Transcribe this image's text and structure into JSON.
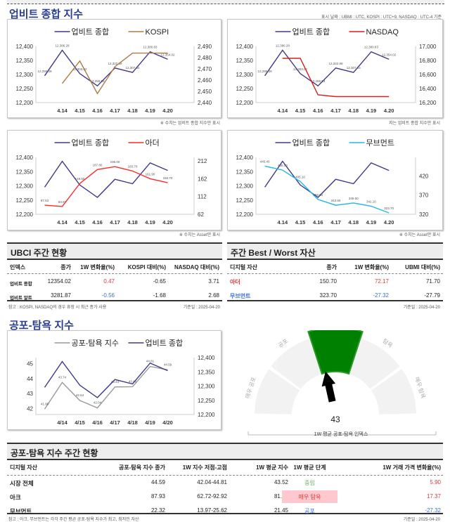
{
  "colors": {
    "ubmi": "#3f3a8c",
    "kospi": "#b07a45",
    "nasdaq": "#d42020",
    "ader": "#ff2a2a",
    "movement": "#22b5ee",
    "fear": "#999999",
    "gauge_active": "#008000",
    "gauge_idle": "#f2f2f2"
  },
  "header": {
    "title": "업비트 종합 지수",
    "date_note": "표시 날짜 : UBMI : UTC, KOSPI : UTC+9, NASDAQ : UTC-4 기준"
  },
  "chart_data": [
    {
      "type": "line",
      "categories": [
        "",
        "4.14",
        "4.15",
        "4.16",
        "4.17",
        "4.18",
        "4.19",
        "4.20"
      ],
      "series": [
        {
          "name": "업비트 종합",
          "axis": "left",
          "values": [
            12295.39,
            12386.28,
            12303.02,
            12259.53,
            12322.89,
            12307.34,
            12380.83,
            12354.02
          ],
          "labels": [
            "12,295.39",
            "12,386.28",
            "12,303.02",
            "12,259.53",
            "12,322.89",
            "12,307.34",
            "12,380.83",
            "12,354.02"
          ]
        },
        {
          "name": "KOSPI",
          "axis": "right",
          "values": [
            null,
            2457,
            2477,
            2448,
            2472,
            2484,
            2484,
            2484
          ]
        }
      ],
      "left_ticks": [
        "12,400",
        "12,350",
        "12,300",
        "12,250",
        "12,200"
      ],
      "ylim": [
        12200,
        12400
      ],
      "right_ticks": [
        "2,490",
        "2,480",
        "2,470",
        "2,460",
        "2,450",
        "2,440"
      ],
      "ylim_right": [
        2440,
        2490
      ],
      "note": "※ 수치는 업비트 종합 지수만 표시"
    },
    {
      "type": "line",
      "categories": [
        "",
        "4.14",
        "4.15",
        "4.16",
        "4.17",
        "4.18",
        "4.19",
        "4.20"
      ],
      "series": [
        {
          "name": "업비트 종합",
          "axis": "left",
          "values": [
            12295.39,
            12386.28,
            12303.02,
            12259.53,
            12322.89,
            12307.34,
            12380.83,
            12354.02
          ],
          "labels": [
            "12,295.39",
            "12,386.28",
            "12,303.02",
            "12,259.53",
            "12,322.89",
            "12,307.34",
            "12,380.83",
            "12,354.02"
          ]
        },
        {
          "name": "NASDAQ",
          "axis": "right",
          "values": [
            null,
            16830,
            16830,
            16310,
            16285,
            16285,
            16285,
            16285
          ]
        }
      ],
      "left_ticks": [
        "12,400",
        "12,350",
        "12,300",
        "12,250",
        "12,200"
      ],
      "ylim": [
        12200,
        12400
      ],
      "right_ticks": [
        "17,000",
        "16,800",
        "16,600",
        "16,400",
        "16,200"
      ],
      "ylim_right": [
        16200,
        17000
      ],
      "note": "지는 업비트 종합 지수만 표시"
    },
    {
      "type": "line",
      "categories": [
        "",
        "4.14",
        "4.15",
        "4.16",
        "4.17",
        "4.18",
        "4.19",
        "4.20"
      ],
      "series": [
        {
          "name": "업비트 종합",
          "axis": "left",
          "values": [
            12295.39,
            12386.28,
            12303.02,
            12259.53,
            12322.89,
            12307.34,
            12380.83,
            12354.02
          ]
        },
        {
          "name": "아더",
          "axis": "right",
          "values": [
            87.53,
            83.97,
            148.5,
            187.8,
            196.0,
            183.7,
            161.9,
            150.7
          ],
          "labels": [
            "87.53",
            "83.97",
            "148.50",
            "187.80",
            "196.00",
            "183.70",
            "161.90",
            "150.70"
          ]
        }
      ],
      "left_ticks": [
        "12,400",
        "12,350",
        "12,300",
        "12,250",
        "12,200"
      ],
      "ylim": [
        12200,
        12400
      ],
      "right_ticks": [
        "212",
        "162",
        "112",
        "62"
      ],
      "ylim_right": [
        62,
        222
      ],
      "note": "※ 수치는 Asset만 표시"
    },
    {
      "type": "line",
      "categories": [
        "",
        "4.14",
        "4.15",
        "4.16",
        "4.17",
        "4.18",
        "4.19",
        "4.20"
      ],
      "series": [
        {
          "name": "업비트 종합",
          "axis": "left",
          "values": [
            12295.39,
            12386.28,
            12303.02,
            12259.53,
            12322.89,
            12307.34,
            12380.83,
            12354.02
          ]
        },
        {
          "name": "무브먼트",
          "axis": "right",
          "values": [
            445.4,
            435.0,
            405.1,
            358.6,
            343.5,
            349.5,
            341.1,
            323.7
          ],
          "labels": [
            "445.40",
            "435.00",
            "405.10",
            "358.60",
            "343.50",
            "349.50",
            "341.10",
            "323.70"
          ]
        }
      ],
      "left_ticks": [
        "12,400",
        "12,350",
        "12,300",
        "12,250",
        "12,200"
      ],
      "ylim": [
        12200,
        12400
      ],
      "right_ticks": [
        "420",
        "370",
        "320"
      ],
      "ylim_right": [
        320,
        468
      ],
      "note": "※ 수치는 Asset만 표시"
    },
    {
      "type": "line",
      "categories": [
        "",
        "4/14",
        "4/15",
        "4/16",
        "4/17",
        "4/18",
        "4/19",
        "4/20"
      ],
      "series": [
        {
          "name": "공포-탐욕 지수",
          "axis": "left",
          "values": [
            41.96,
            43.74,
            42.54,
            42.04,
            43.44,
            43.46,
            44.81,
            44.59
          ],
          "labels": [
            "41.96",
            "43.74",
            "42.54",
            "42.04",
            "43.44",
            "43.46",
            "44.81",
            "44.59"
          ]
        },
        {
          "name": "업비트 종합",
          "axis": "right",
          "values": [
            12295.39,
            12386.28,
            12303.02,
            12259.53,
            12322.89,
            12307.34,
            12380.83,
            12354.02
          ]
        }
      ],
      "left_ticks": [
        "45",
        "44",
        "43",
        "42"
      ],
      "ylim": [
        41.6,
        45.4
      ],
      "right_ticks": [
        "12,400",
        "12,350",
        "12,300",
        "12,250",
        "12,200"
      ],
      "ylim_right": [
        12200,
        12400
      ]
    }
  ],
  "ubci": {
    "title": "UBCI 주간 현황",
    "columns": [
      "인덱스",
      "종가",
      "1W 변화율(%)",
      "KOSPI 대비(%)",
      "NASDAQ 대비(%)"
    ],
    "rows": [
      [
        "업비트 종합",
        "12354.02",
        "0.47",
        "-0.65",
        "3.71"
      ],
      [
        "업비트 알트",
        "3281.87",
        "-0.56",
        "-1.68",
        "2.68"
      ]
    ],
    "footnote": "참고 : KOSPI, NASDAQ의 경우 휴장 시 최근 종가 사용",
    "date": "기준일 : 2025-04-20"
  },
  "bestworst": {
    "title": "주간 Best / Worst 자산",
    "columns": [
      "디지털 자산",
      "종가",
      "1W 변화율(%)",
      "UBMI 대비(%)"
    ],
    "rows": [
      [
        "아더",
        "150.70",
        "72.17",
        "71.70"
      ],
      [
        "무브먼트",
        "323.70",
        "-27.32",
        "-27.79"
      ]
    ],
    "date": "기준일 : 2025-04-20"
  },
  "fear": {
    "title": "공포-탐욕 지수"
  },
  "gauge": {
    "value": 43,
    "active_label": "중립",
    "labels": [
      "매우 공포",
      "공포",
      "중립",
      "탐욕",
      "매우 탐욕"
    ],
    "caption": "1W 평균 공포-탐욕 인덱스"
  },
  "feartable": {
    "title": "공포-탐욕 지수 주간 현황",
    "columns": [
      "디지털 자산",
      "공포-탐욕 지수 종가",
      "1W 지수 저점-고점",
      "1W 평균 지수",
      "1W 평균 단계",
      "1W 거래 가격 변화율(%)"
    ],
    "rows": [
      [
        "시장 전체",
        "44.59",
        "42.04-44.81",
        "43.52",
        "중립",
        "5.90"
      ],
      [
        "아크",
        "87.93",
        "62.72-92.92",
        "81.57",
        "매우 탐욕",
        "17.37"
      ],
      [
        "무브먼트",
        "22.32",
        "13.97-25.62",
        "21.45",
        "공포",
        "-27.32"
      ]
    ],
    "footnote": "참고 : 아크, 무브먼트는 각각 주간 평균 공포-탐욕 지수가 최고, 최저인 자산",
    "date": "기준일 : 2025-04-20"
  }
}
